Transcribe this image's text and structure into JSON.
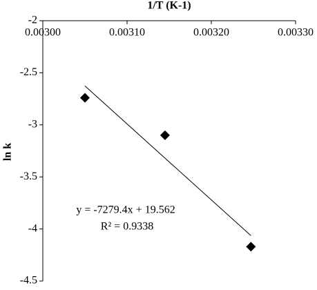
{
  "chart_data": {
    "type": "scatter",
    "title": "1/T (K-1)",
    "y_label": "ln k",
    "x": [
      0.00305,
      0.003145,
      0.003247
    ],
    "values": [
      -2.74,
      -3.1,
      -4.17
    ],
    "color": "#000000",
    "xlim": [
      0.003,
      0.0033
    ],
    "xticks": [
      {
        "value": 0.003,
        "label": "0.00300"
      },
      {
        "value": 0.0031,
        "label": "0.00310"
      },
      {
        "value": 0.0032,
        "label": "0.00320"
      },
      {
        "value": 0.0033,
        "label": "0.00330"
      }
    ],
    "ylim": [
      -4.5,
      -2
    ],
    "yticks": [
      -4.5,
      -4,
      -3.5,
      -3,
      -2.5,
      -2
    ],
    "trendline": {
      "equation": "y = -7279.4x + 19.562",
      "r_squared": "R² = 0.9338"
    }
  }
}
